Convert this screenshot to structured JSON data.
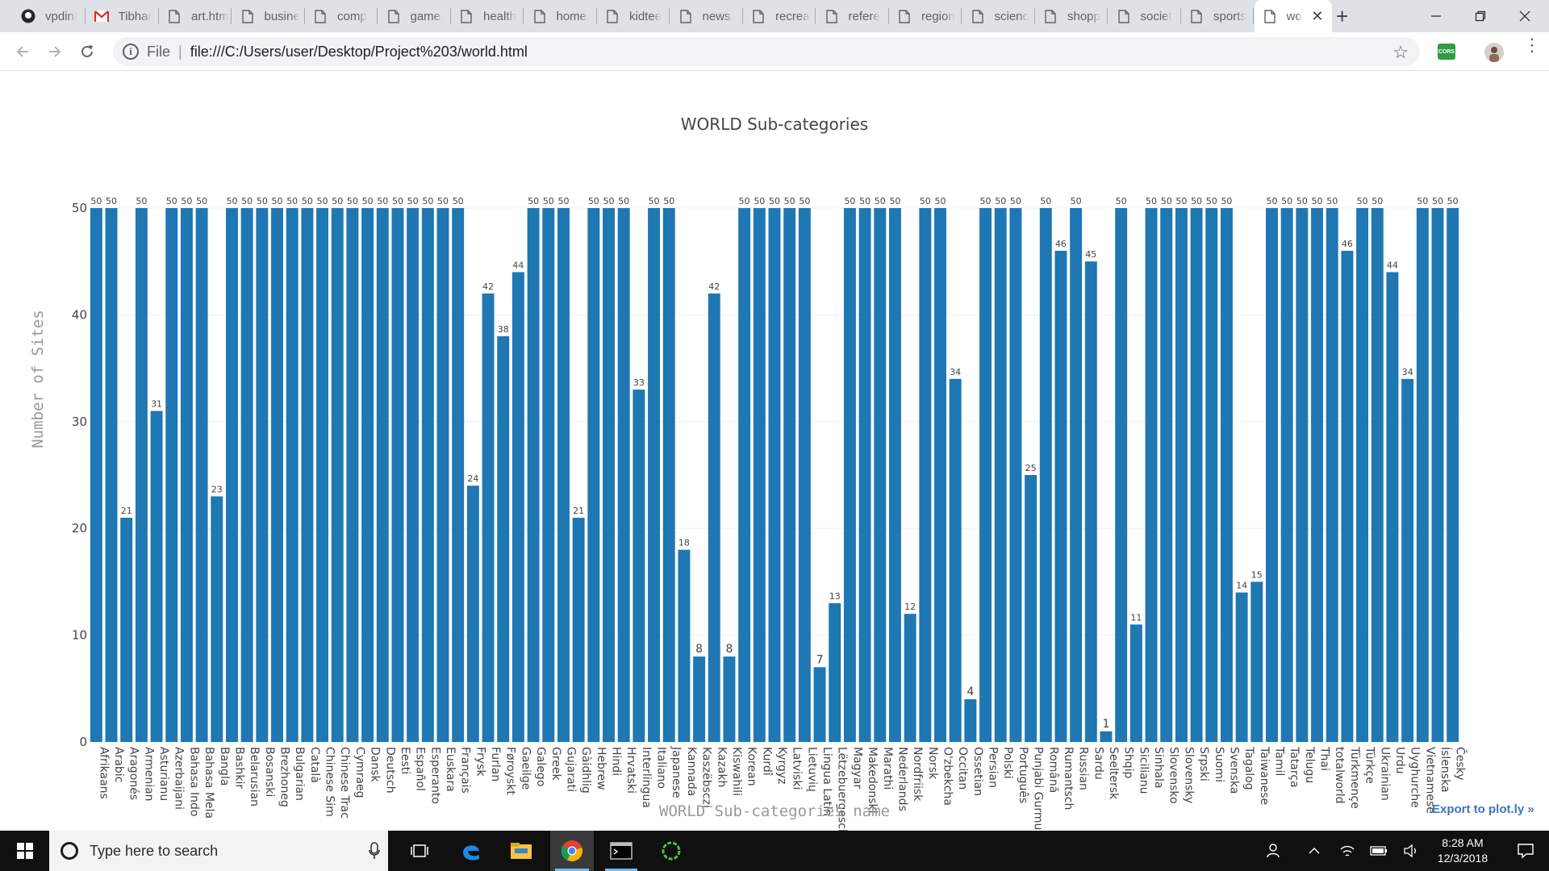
{
  "browser": {
    "tabs": [
      {
        "label": "vpdin!",
        "icon": "github-icon"
      },
      {
        "label": "Tibhar",
        "icon": "gmail-icon"
      },
      {
        "label": "art.htm",
        "icon": "page-icon"
      },
      {
        "label": "busine",
        "icon": "page-icon"
      },
      {
        "label": "comp",
        "icon": "page-icon"
      },
      {
        "label": "game.",
        "icon": "page-icon"
      },
      {
        "label": "health",
        "icon": "page-icon"
      },
      {
        "label": "home.",
        "icon": "page-icon"
      },
      {
        "label": "kidtee",
        "icon": "page-icon"
      },
      {
        "label": "news.",
        "icon": "page-icon"
      },
      {
        "label": "recrea",
        "icon": "page-icon"
      },
      {
        "label": "refere",
        "icon": "page-icon"
      },
      {
        "label": "region",
        "icon": "page-icon"
      },
      {
        "label": "scienc",
        "icon": "page-icon"
      },
      {
        "label": "shopp",
        "icon": "page-icon"
      },
      {
        "label": "societ",
        "icon": "page-icon"
      },
      {
        "label": "sports",
        "icon": "page-icon"
      },
      {
        "label": "wo",
        "icon": "page-icon",
        "active": true
      }
    ],
    "new_tab_label": "+",
    "address": {
      "scheme": "File",
      "url": "file:///C:/Users/user/Desktop/Project%203/world.html"
    },
    "extension_label": "CORS"
  },
  "chart_data": {
    "type": "bar",
    "title": "WORLD  Sub-categories",
    "xlabel": "WORLD Sub-categories name",
    "ylabel": "Number of Sites",
    "ylim": [
      0,
      50
    ],
    "yticks": [
      0,
      10,
      20,
      30,
      40,
      50
    ],
    "grid": true,
    "bar_color": "#1f77b4",
    "categories": [
      "Afrikaans",
      "Arabic",
      "Aragonés",
      "Armenian",
      "Asturianu",
      "Azerbaijani",
      "Bahasa Indo",
      "Bahasa Mela",
      "Bangla",
      "Bashkir",
      "Belarusian",
      "Bosanski",
      "Brezhoneg",
      "Bulgarian",
      "Català",
      "Chinese Sim",
      "Chinese Trac",
      "Cymraeg",
      "Dansk",
      "Deutsch",
      "Eesti",
      "Español",
      "Esperanto",
      "Euskara",
      "Français",
      "Frysk",
      "Furlan",
      "Føroyskt",
      "Gaeilge",
      "Galego",
      "Greek",
      "Gujarati",
      "Gàidhlig",
      "Hebrew",
      "Hindi",
      "Hrvatski",
      "Interlingua",
      "Italiano",
      "Japanese",
      "Kannada",
      "Kaszëbsczi",
      "Kazakh",
      "Kiswahili",
      "Korean",
      "Kurdî",
      "Kyrgyz",
      "Latviski",
      "Lietuvių",
      "Lingua Latin",
      "Lëtzebuergesch",
      "Magyar",
      "Makedonski",
      "Marathi",
      "Nederlands",
      "Nordfriisk",
      "Norsk",
      "O'zbekcha",
      "Occitan",
      "Ossetian",
      "Persian",
      "Polski",
      "Português",
      "Punjabi Gurmukhi",
      "Română",
      "Rumantsch",
      "Russian",
      "Sardu",
      "Seeltersk",
      "Shqip",
      "Sicilianu",
      "Sinhala",
      "Slovensko",
      "Slovensky",
      "Srpski",
      "Suomi",
      "Svenska",
      "Tagalog",
      "Taiwanese",
      "Tamil",
      "Tatarça",
      "Telugu",
      "Thai",
      "totalworld",
      "Türkmençe",
      "Türkçe",
      "Ukrainian",
      "Urdu",
      "Uyghurche",
      "Vietnamese",
      "Íslenska",
      "Česky"
    ],
    "values": [
      50,
      50,
      21,
      50,
      31,
      50,
      50,
      50,
      23,
      50,
      50,
      50,
      50,
      50,
      50,
      50,
      50,
      50,
      50,
      50,
      50,
      50,
      50,
      50,
      50,
      24,
      42,
      38,
      44,
      50,
      50,
      50,
      21,
      50,
      50,
      50,
      33,
      50,
      50,
      18,
      8,
      42,
      8,
      50,
      50,
      50,
      50,
      50,
      7,
      13,
      50,
      50,
      50,
      50,
      12,
      50,
      50,
      34,
      4,
      50,
      50,
      50,
      25,
      50,
      46,
      50,
      45,
      1,
      50,
      11,
      50,
      50,
      50,
      50,
      50,
      50,
      14,
      15,
      50,
      50,
      50,
      50,
      50,
      46,
      50,
      50,
      44,
      34,
      50,
      50,
      50
    ]
  },
  "export_link": "Export to plot.ly »",
  "taskbar": {
    "search_placeholder": "Type here to search",
    "time": "8:28 AM",
    "date": "12/3/2018"
  }
}
